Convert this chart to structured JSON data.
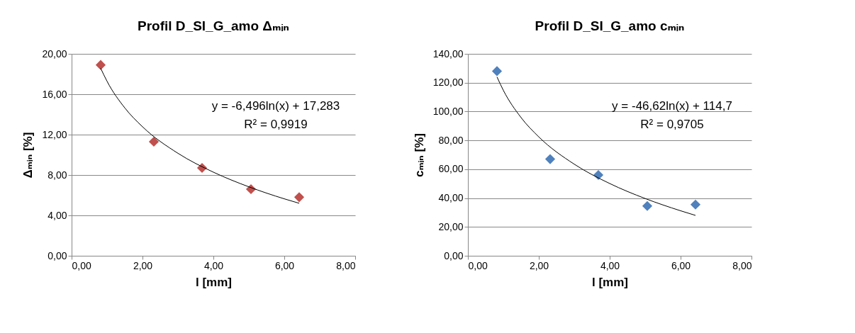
{
  "chart_data": [
    {
      "type": "scatter",
      "title": "Profil D_SI_G_amo Δₘᵢₙ",
      "xlabel": "l [mm]",
      "ylabel": "Δₘᵢₙ [%]",
      "x": [
        0.82,
        2.32,
        3.68,
        5.06,
        6.42
      ],
      "series": [
        {
          "type": "scatter",
          "color": "#c0504d",
          "marker": "diamond",
          "values": [
            18.9,
            11.3,
            8.7,
            6.6,
            5.8
          ]
        },
        {
          "type": "line",
          "color": "#000000",
          "marker": "none",
          "x": [
            0.82,
            1,
            1.5,
            2,
            3,
            4,
            5,
            6,
            6.42
          ],
          "values": [
            18.57,
            17.28,
            14.65,
            12.78,
            10.15,
            8.28,
            6.83,
            5.64,
            5.2
          ]
        }
      ],
      "xlim": [
        0,
        8
      ],
      "xticks": [
        {
          "value": 0,
          "label": "0,00"
        },
        {
          "value": 2,
          "label": "2,00"
        },
        {
          "value": 4,
          "label": "4,00"
        },
        {
          "value": 6,
          "label": "6,00"
        },
        {
          "value": 8,
          "label": "8,00"
        }
      ],
      "ylim": [
        0,
        20
      ],
      "yticks": [
        {
          "value": 0,
          "label": "0,00"
        },
        {
          "value": 4,
          "label": "4,00"
        },
        {
          "value": 8,
          "label": "8,00"
        },
        {
          "value": 12,
          "label": "12,00"
        },
        {
          "value": 16,
          "label": "16,00"
        },
        {
          "value": 20,
          "label": "20,00"
        }
      ],
      "grid": "y",
      "annotations": [
        "y = -6,496ln(x) + 17,283",
        "R² = 0,9919"
      ]
    },
    {
      "type": "scatter",
      "title": "Profil D_SI_G_amo cₘᵢₙ",
      "xlabel": "l [mm]",
      "ylabel": "cₘᵢₙ [%]",
      "x": [
        0.82,
        2.32,
        3.68,
        5.06,
        6.42
      ],
      "series": [
        {
          "type": "scatter",
          "color": "#4f81bd",
          "marker": "diamond",
          "values": [
            128,
            67,
            56,
            34.5,
            35.5
          ]
        },
        {
          "type": "line",
          "color": "#000000",
          "marker": "none",
          "x": [
            0.82,
            1,
            1.5,
            2,
            3,
            4,
            5,
            6,
            6.42
          ],
          "values": [
            124,
            114.7,
            95.8,
            82.4,
            63.5,
            50.1,
            39.7,
            31.2,
            28
          ]
        }
      ],
      "xlim": [
        0,
        8
      ],
      "xticks": [
        {
          "value": 0,
          "label": "0,00"
        },
        {
          "value": 2,
          "label": "2,00"
        },
        {
          "value": 4,
          "label": "4,00"
        },
        {
          "value": 6,
          "label": "6,00"
        },
        {
          "value": 8,
          "label": "8,00"
        }
      ],
      "ylim": [
        0,
        140
      ],
      "yticks": [
        {
          "value": 0,
          "label": "0,00"
        },
        {
          "value": 20,
          "label": "20,00"
        },
        {
          "value": 40,
          "label": "40,00"
        },
        {
          "value": 60,
          "label": "60,00"
        },
        {
          "value": 80,
          "label": "80,00"
        },
        {
          "value": 100,
          "label": "100,00"
        },
        {
          "value": 120,
          "label": "120,00"
        },
        {
          "value": 140,
          "label": "140,00"
        }
      ],
      "grid": "y",
      "annotations": [
        "y = -46,62ln(x) + 114,7",
        "R² = 0,9705"
      ]
    }
  ]
}
